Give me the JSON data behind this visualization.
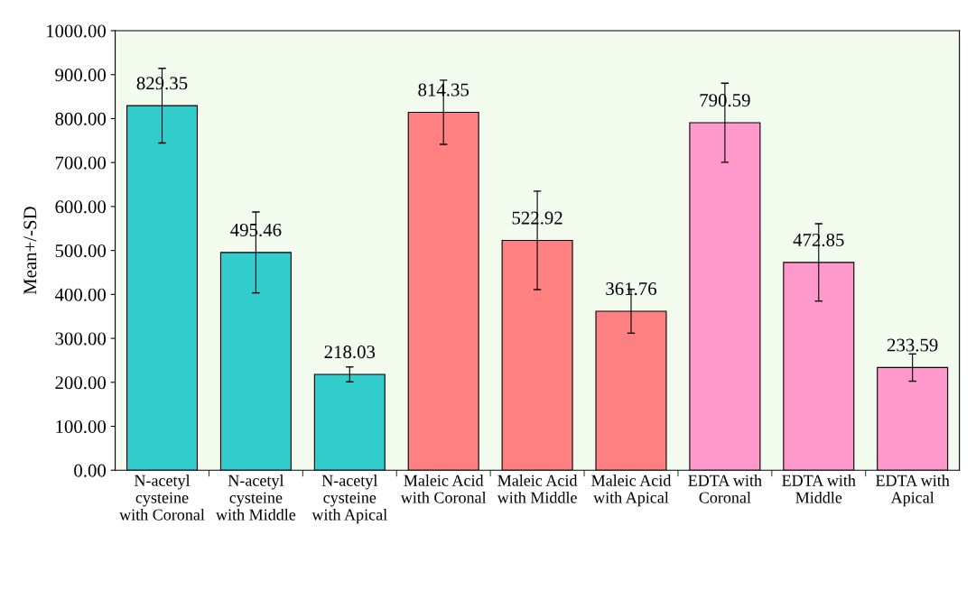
{
  "chart_data": {
    "type": "bar",
    "ylabel": "Mean+/-SD",
    "categories": [
      "N-acetyl cysteine with Coronal",
      "N-acetyl cysteine with Middle",
      "N-acetyl cysteine with Apical",
      "Maleic Acid with Coronal",
      "Maleic Acid with Middle",
      "Maleic Acid with Apical",
      "EDTA with Coronal",
      "EDTA with Middle",
      "EDTA with Apical"
    ],
    "values": [
      829.35,
      495.46,
      218.03,
      814.35,
      522.92,
      361.76,
      790.59,
      472.85,
      233.59
    ],
    "errors": [
      85,
      92,
      17,
      73,
      112,
      50,
      90,
      88,
      31
    ],
    "colors": [
      "#33cccc",
      "#33cccc",
      "#33cccc",
      "#ff8080",
      "#ff8080",
      "#ff8080",
      "#ff99cc",
      "#ff99cc",
      "#ff99cc"
    ],
    "data_labels": true,
    "ylim": [
      0,
      1000
    ],
    "yticks": [
      {
        "value": 0,
        "label": "0.00"
      },
      {
        "value": 100,
        "label": "100.00"
      },
      {
        "value": 200,
        "label": "200.00"
      },
      {
        "value": 300,
        "label": "300.00"
      },
      {
        "value": 400,
        "label": "400.00"
      },
      {
        "value": 500,
        "label": "500.00"
      },
      {
        "value": 600,
        "label": "600.00"
      },
      {
        "value": 700,
        "label": "700.00"
      },
      {
        "value": 800,
        "label": "800.00"
      },
      {
        "value": 900,
        "label": "900.00"
      },
      {
        "value": 1000,
        "label": "1000.00"
      }
    ],
    "grid": false,
    "legend": false
  }
}
